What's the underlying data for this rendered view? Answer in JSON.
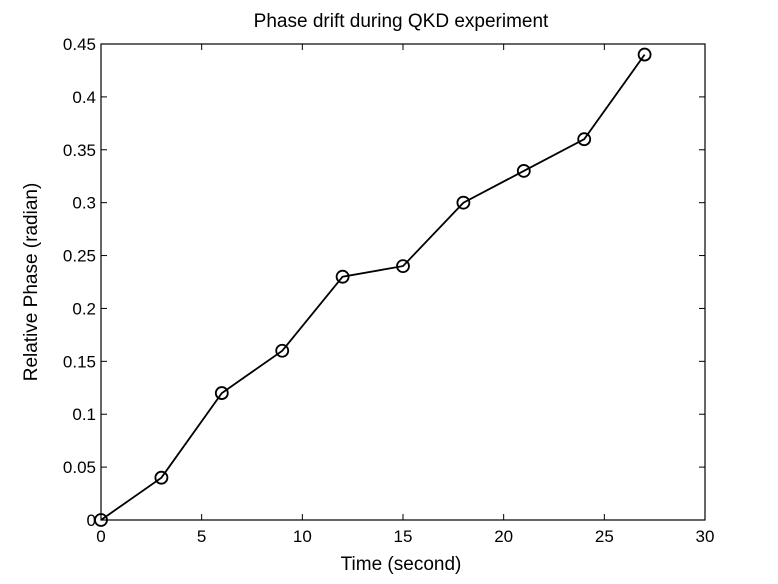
{
  "chart_data": {
    "type": "line",
    "title": "Phase drift during QKD experiment",
    "xlabel": "Time (second)",
    "ylabel": "Relative Phase (radian)",
    "xlim": [
      0,
      30
    ],
    "ylim": [
      0,
      0.45
    ],
    "xticks": [
      0,
      5,
      10,
      15,
      20,
      25,
      30
    ],
    "xtick_labels": [
      "0",
      "5",
      "10",
      "15",
      "20",
      "25",
      "30"
    ],
    "yticks": [
      0,
      0.05,
      0.1,
      0.15,
      0.2,
      0.25,
      0.3,
      0.35,
      0.4,
      0.45
    ],
    "ytick_labels": [
      "0",
      "0.05",
      "0.1",
      "0.15",
      "0.2",
      "0.25",
      "0.3",
      "0.35",
      "0.4",
      "0.45"
    ],
    "grid": false,
    "legend": false,
    "series": [
      {
        "marker": "circle",
        "color": "#000000",
        "x": [
          0,
          3,
          6,
          9,
          12,
          15,
          18,
          21,
          24,
          27
        ],
        "y": [
          0,
          0.04,
          0.12,
          0.16,
          0.23,
          0.24,
          0.3,
          0.33,
          0.36,
          0.44
        ]
      }
    ]
  }
}
